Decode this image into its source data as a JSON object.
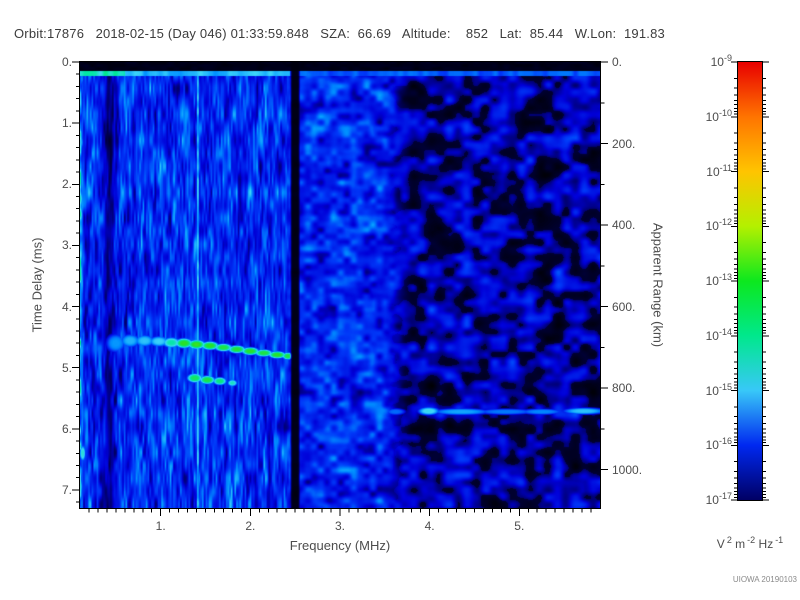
{
  "header": {
    "title": "Orbit:17876   2018-02-15 (Day 046) 01:33:59.848   SZA:  66.69   Altitude:    852   Lat:  85.44   W.Lon:  191.83",
    "orbit": "17876",
    "date": "2018-02-15",
    "day_of_year": "046",
    "time": "01:33:59.848",
    "sza": "66.69",
    "altitude": "852",
    "lat": "85.44",
    "w_lon": "191.83"
  },
  "footer": {
    "credit": "UIOWA 20190103"
  },
  "chart_data": {
    "type": "heatmap",
    "title": "Radar sounder ionogram spectrogram",
    "xlabel": "Frequency (MHz)",
    "ylabel_left": "Time Delay (ms)",
    "ylabel_right": "Apparent Range (km)",
    "x_range_mhz": [
      0.1,
      5.9
    ],
    "x_major_ticks": [
      {
        "v": 1.0,
        "label": "1."
      },
      {
        "v": 2.0,
        "label": "2."
      },
      {
        "v": 3.0,
        "label": "3."
      },
      {
        "v": 4.0,
        "label": "4."
      },
      {
        "v": 5.0,
        "label": "5."
      }
    ],
    "x_minor_step_mhz": 0.1,
    "y_range_ms": [
      0,
      7.295
    ],
    "y_major_ticks": [
      {
        "v": 0,
        "label": "0."
      },
      {
        "v": 1,
        "label": "1."
      },
      {
        "v": 2,
        "label": "2."
      },
      {
        "v": 3,
        "label": "3."
      },
      {
        "v": 4,
        "label": "4."
      },
      {
        "v": 5,
        "label": "5."
      },
      {
        "v": 6,
        "label": "6."
      },
      {
        "v": 7,
        "label": "7."
      }
    ],
    "y_minor_step_ms": 0.2,
    "right_axis_km_per_ms": 150,
    "right_major_ticks": [
      {
        "v": 0,
        "label": "0."
      },
      {
        "v": 200,
        "label": "200."
      },
      {
        "v": 400,
        "label": "400."
      },
      {
        "v": 600,
        "label": "600."
      },
      {
        "v": 800,
        "label": "800."
      },
      {
        "v": 1000,
        "label": "1000."
      }
    ],
    "right_minor_step_km": 100,
    "colorbar": {
      "scale": "log",
      "max_exp": -9,
      "min_exp": -17,
      "tick_exponents": [
        -9,
        -10,
        -11,
        -12,
        -13,
        -14,
        -15,
        -16,
        -17
      ],
      "decade_colors_top_to_bottom": [
        "#e80000",
        "#ff7400",
        "#ffc400",
        "#b4f000",
        "#0ce81e",
        "#00e88c",
        "#38c8f8",
        "#0028f0",
        "#000064"
      ]
    },
    "colorbar_unit_parts": [
      {
        "t": "V"
      },
      {
        "sup": "2"
      },
      {
        "t": " m"
      },
      {
        "sup": "-2"
      },
      {
        "t": " Hz"
      },
      {
        "sup": "-1"
      }
    ],
    "colormap_stops": [
      [
        0.0,
        "#000000"
      ],
      [
        0.08,
        "#000058"
      ],
      [
        0.2,
        "#0000d8"
      ],
      [
        0.33,
        "#0038f8"
      ],
      [
        0.45,
        "#0090ff"
      ],
      [
        0.55,
        "#40d8f8"
      ],
      [
        0.63,
        "#00e8a0"
      ],
      [
        0.72,
        "#28e028"
      ],
      [
        0.82,
        "#c8f000"
      ],
      [
        0.91,
        "#ff8c00"
      ],
      [
        1.0,
        "#ff0000"
      ]
    ],
    "texture": {
      "seed": 7,
      "left_region": {
        "f_end": 2.44,
        "base": 0.09,
        "amp": 0.47
      },
      "mid_region": {
        "f_end": 3.6,
        "base": 0.07,
        "amp": 0.43
      },
      "right_region": {
        "black_threshold": 0.4
      },
      "dark_band": {
        "f": 0.425,
        "sigma": 0.07,
        "strength": 0.7
      },
      "cyan_line": {
        "f": 1.415,
        "sigma": 0.018,
        "v": 0.46
      },
      "black_band": {
        "f": 2.5,
        "half_width": 0.05
      },
      "left_edge": {
        "f_end": 0.16
      },
      "top_black_band": {
        "t_end": 0.15
      },
      "top_line": {
        "t_end": 0.235,
        "v_left": 0.6,
        "v_mid": 0.5,
        "v_right": 0.37
      }
    },
    "echo_blobs": [
      {
        "f": 0.5,
        "t": 4.6,
        "df": 0.1,
        "dt": 0.14,
        "v": 0.46
      },
      {
        "f": 0.66,
        "t": 4.56,
        "df": 0.1,
        "dt": 0.1,
        "v": 0.5
      },
      {
        "f": 0.82,
        "t": 4.56,
        "df": 0.1,
        "dt": 0.09,
        "v": 0.52
      },
      {
        "f": 0.98,
        "t": 4.57,
        "df": 0.1,
        "dt": 0.08,
        "v": 0.54
      },
      {
        "f": 1.12,
        "t": 4.59,
        "df": 0.09,
        "dt": 0.08,
        "v": 0.62
      },
      {
        "f": 1.26,
        "t": 4.6,
        "df": 0.09,
        "dt": 0.075,
        "v": 0.72
      },
      {
        "f": 1.4,
        "t": 4.62,
        "df": 0.09,
        "dt": 0.07,
        "v": 0.73
      },
      {
        "f": 1.55,
        "t": 4.64,
        "df": 0.09,
        "dt": 0.065,
        "v": 0.72
      },
      {
        "f": 1.7,
        "t": 4.67,
        "df": 0.09,
        "dt": 0.06,
        "v": 0.7
      },
      {
        "f": 1.85,
        "t": 4.7,
        "df": 0.09,
        "dt": 0.06,
        "v": 0.71
      },
      {
        "f": 2.0,
        "t": 4.73,
        "df": 0.09,
        "dt": 0.06,
        "v": 0.72
      },
      {
        "f": 2.15,
        "t": 4.76,
        "df": 0.09,
        "dt": 0.055,
        "v": 0.7
      },
      {
        "f": 2.3,
        "t": 4.79,
        "df": 0.09,
        "dt": 0.055,
        "v": 0.72
      },
      {
        "f": 2.42,
        "t": 4.81,
        "df": 0.06,
        "dt": 0.055,
        "v": 0.7
      },
      {
        "f": 1.38,
        "t": 5.17,
        "df": 0.08,
        "dt": 0.07,
        "v": 0.68
      },
      {
        "f": 1.52,
        "t": 5.2,
        "df": 0.08,
        "dt": 0.065,
        "v": 0.7
      },
      {
        "f": 1.66,
        "t": 5.22,
        "df": 0.07,
        "dt": 0.06,
        "v": 0.66
      },
      {
        "f": 1.8,
        "t": 5.25,
        "df": 0.05,
        "dt": 0.05,
        "v": 0.6
      },
      {
        "f": 0.13,
        "t": 6.4,
        "df": 0.03,
        "dt": 0.12,
        "v": 0.58
      }
    ],
    "surface_blobs": [
      {
        "f": 3.62,
        "t": 5.72,
        "df": 0.1,
        "dt": 0.05,
        "v": 0.4
      },
      {
        "f": 3.99,
        "t": 5.71,
        "df": 0.11,
        "dt": 0.06,
        "v": 0.56
      },
      {
        "f": 4.35,
        "t": 5.72,
        "df": 0.3,
        "dt": 0.05,
        "v": 0.48
      },
      {
        "f": 4.85,
        "t": 5.72,
        "df": 0.3,
        "dt": 0.045,
        "v": 0.42
      },
      {
        "f": 5.25,
        "t": 5.72,
        "df": 0.22,
        "dt": 0.045,
        "v": 0.44
      },
      {
        "f": 5.72,
        "t": 5.71,
        "df": 0.22,
        "dt": 0.05,
        "v": 0.52
      }
    ]
  }
}
